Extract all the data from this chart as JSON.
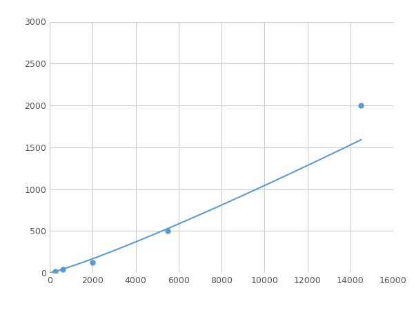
{
  "x": [
    0,
    250,
    600,
    2000,
    5500,
    14500
  ],
  "y": [
    0,
    20,
    40,
    120,
    500,
    2000
  ],
  "line_color": "#5b9bd5",
  "marker_x": [
    250,
    600,
    2000,
    5500,
    14500
  ],
  "marker_y": [
    20,
    40,
    120,
    500,
    2000
  ],
  "marker_color": "#5b9bd5",
  "marker_size": 5,
  "xlim": [
    0,
    16000
  ],
  "ylim": [
    0,
    3000
  ],
  "xticks": [
    0,
    2000,
    4000,
    6000,
    8000,
    10000,
    12000,
    14000,
    16000
  ],
  "yticks": [
    0,
    500,
    1000,
    1500,
    2000,
    2500,
    3000
  ],
  "grid_color": "#cccccc",
  "background_color": "#ffffff",
  "figsize": [
    6.0,
    4.5
  ],
  "dpi": 100
}
